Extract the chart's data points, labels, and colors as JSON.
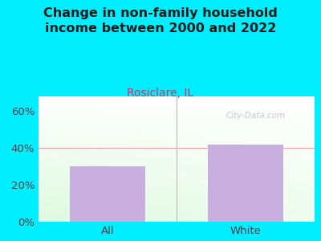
{
  "title": "Change in non-family household\nincome between 2000 and 2022",
  "subtitle": "Rosiclare, IL",
  "categories": [
    "All",
    "White"
  ],
  "values": [
    30,
    42
  ],
  "bar_color": "#c9aee0",
  "title_color": "#1a1a1a",
  "subtitle_color": "#cc3366",
  "tick_label_color": "#444444",
  "background_outer": "#00eeff",
  "grid_line_color": "#e8a0a0",
  "yticks": [
    0,
    20,
    40,
    60
  ],
  "ytick_labels": [
    "0%",
    "20%",
    "40%",
    "60%"
  ],
  "ylim": [
    0,
    68
  ],
  "watermark": "City-Data.com",
  "title_fontsize": 11.5,
  "subtitle_fontsize": 10,
  "tick_fontsize": 9.5
}
